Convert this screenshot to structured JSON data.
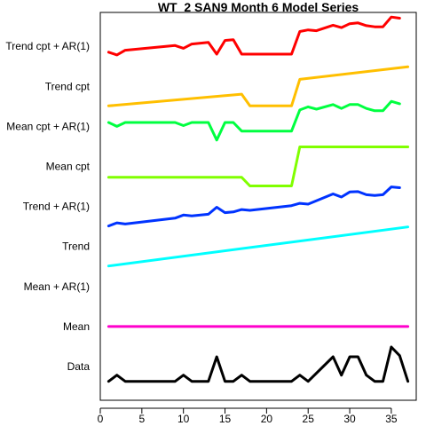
{
  "chart_data": {
    "type": "line",
    "title": "WT_2 SAN9 Month 6 Model Series",
    "xlabel": "",
    "ylabel": "",
    "xlim": [
      0,
      38
    ],
    "x_ticks": [
      0,
      5,
      10,
      15,
      20,
      25,
      30,
      35
    ],
    "y_categories": [
      "Data",
      "Mean",
      "Mean + AR(1)",
      "Trend",
      "Trend + AR(1)",
      "Mean cpt",
      "Mean cpt + AR(1)",
      "Trend cpt",
      "Trend cpt + AR(1)"
    ],
    "grid": false,
    "legend": "none",
    "series": [
      {
        "name": "Data",
        "color": "#000000",
        "lane": 0,
        "points": [
          [
            1,
            0.12
          ],
          [
            2,
            0.28
          ],
          [
            3,
            0.12
          ],
          [
            9,
            0.12
          ],
          [
            10,
            0.28
          ],
          [
            11,
            0.12
          ],
          [
            13,
            0.12
          ],
          [
            14,
            0.75
          ],
          [
            15,
            0.12
          ],
          [
            16,
            0.12
          ],
          [
            17,
            0.28
          ],
          [
            18,
            0.12
          ],
          [
            23,
            0.12
          ],
          [
            24,
            0.28
          ],
          [
            25,
            0.12
          ],
          [
            28,
            0.75
          ],
          [
            29,
            0.28
          ],
          [
            30,
            0.75
          ],
          [
            31,
            0.75
          ],
          [
            32,
            0.28
          ],
          [
            33,
            0.12
          ],
          [
            34,
            0.12
          ],
          [
            35,
            1.0
          ],
          [
            36,
            0.78
          ],
          [
            37,
            0.12
          ]
        ]
      },
      {
        "name": "Mean",
        "color": "#ff00cc",
        "lane": 1,
        "points": [
          [
            1,
            0.5
          ],
          [
            37,
            0.5
          ]
        ]
      },
      {
        "name": "Trend",
        "color": "#00ffff",
        "lane": 3,
        "points": [
          [
            1,
            0.0
          ],
          [
            37,
            1.0
          ]
        ]
      },
      {
        "name": "Trend + AR(1)",
        "color": "#0033ff",
        "lane": 4,
        "points": [
          [
            1,
            0.0
          ],
          [
            2,
            0.08
          ],
          [
            3,
            0.05
          ],
          [
            9,
            0.2
          ],
          [
            10,
            0.28
          ],
          [
            11,
            0.26
          ],
          [
            13,
            0.3
          ],
          [
            14,
            0.48
          ],
          [
            15,
            0.34
          ],
          [
            16,
            0.36
          ],
          [
            17,
            0.42
          ],
          [
            18,
            0.4
          ],
          [
            23,
            0.52
          ],
          [
            24,
            0.58
          ],
          [
            25,
            0.56
          ],
          [
            28,
            0.82
          ],
          [
            29,
            0.74
          ],
          [
            30,
            0.87
          ],
          [
            31,
            0.88
          ],
          [
            32,
            0.8
          ],
          [
            33,
            0.78
          ],
          [
            34,
            0.8
          ],
          [
            35,
            1.0
          ],
          [
            36,
            0.98
          ]
        ]
      },
      {
        "name": "Mean cpt",
        "color": "#80ff00",
        "lane": 5,
        "points": [
          [
            1,
            0.22
          ],
          [
            17,
            0.22
          ],
          [
            18,
            0.0
          ],
          [
            23,
            0.0
          ],
          [
            24,
            1.0
          ],
          [
            37,
            1.0
          ]
        ]
      },
      {
        "name": "Mean cpt + AR(1)",
        "color": "#00ff40",
        "lane": 6,
        "points": [
          [
            1,
            0.6
          ],
          [
            2,
            0.5
          ],
          [
            3,
            0.6
          ],
          [
            9,
            0.6
          ],
          [
            10,
            0.52
          ],
          [
            11,
            0.6
          ],
          [
            13,
            0.6
          ],
          [
            14,
            0.15
          ],
          [
            15,
            0.6
          ],
          [
            16,
            0.6
          ],
          [
            17,
            0.38
          ],
          [
            18,
            0.38
          ],
          [
            23,
            0.38
          ],
          [
            24,
            0.92
          ],
          [
            25,
            1.0
          ],
          [
            26,
            0.94
          ],
          [
            28,
            1.06
          ],
          [
            29,
            0.96
          ],
          [
            30,
            1.06
          ],
          [
            31,
            1.06
          ],
          [
            32,
            0.96
          ],
          [
            33,
            0.9
          ],
          [
            34,
            0.9
          ],
          [
            35,
            1.14
          ],
          [
            36,
            1.08
          ]
        ]
      },
      {
        "name": "Trend cpt",
        "color": "#ffbf00",
        "lane": 7,
        "points": [
          [
            1,
            0.0
          ],
          [
            17,
            0.3
          ],
          [
            18,
            0.0
          ],
          [
            23,
            0.0
          ],
          [
            24,
            0.68
          ],
          [
            37,
            1.0
          ]
        ]
      },
      {
        "name": "Trend cpt + AR(1)",
        "color": "#ff0000",
        "lane": 8,
        "points": [
          [
            1,
            0.35
          ],
          [
            2,
            0.28
          ],
          [
            3,
            0.4
          ],
          [
            9,
            0.52
          ],
          [
            10,
            0.45
          ],
          [
            11,
            0.56
          ],
          [
            13,
            0.6
          ],
          [
            14,
            0.3
          ],
          [
            15,
            0.65
          ],
          [
            16,
            0.67
          ],
          [
            17,
            0.3
          ],
          [
            23,
            0.3
          ],
          [
            24,
            0.88
          ],
          [
            25,
            0.92
          ],
          [
            26,
            0.9
          ],
          [
            28,
            1.04
          ],
          [
            29,
            0.98
          ],
          [
            30,
            1.08
          ],
          [
            31,
            1.1
          ],
          [
            32,
            1.03
          ],
          [
            33,
            1.0
          ],
          [
            34,
            1.0
          ],
          [
            35,
            1.25
          ],
          [
            36,
            1.22
          ]
        ]
      }
    ]
  }
}
